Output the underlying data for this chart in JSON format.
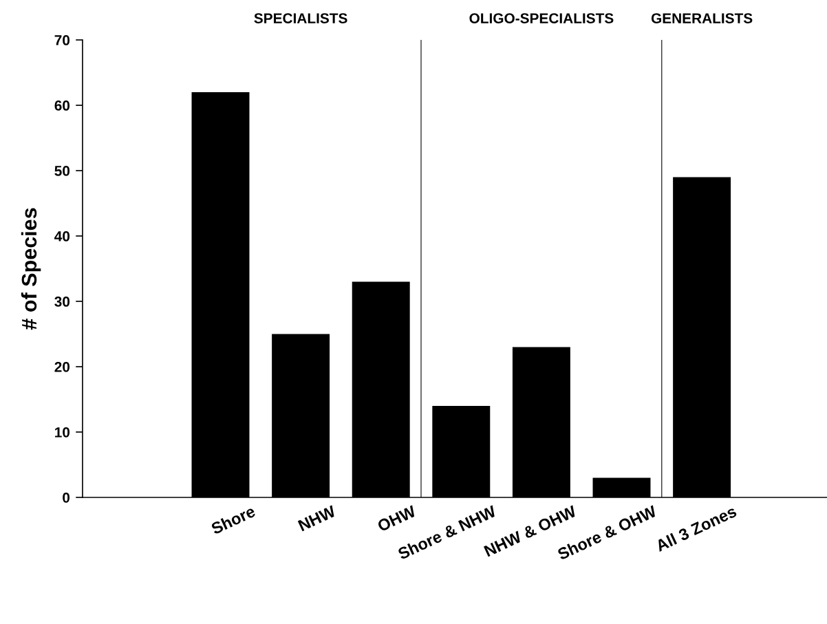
{
  "chart_data": {
    "type": "bar",
    "ylabel": "# of Species",
    "categories": [
      null,
      "Shore",
      "NHW",
      "OHW",
      "Shore & NHW",
      "NHW & OHW",
      "Shore & OHW",
      "All 3 Zones",
      null
    ],
    "values": [
      null,
      62,
      25,
      33,
      14,
      23,
      3,
      49,
      null
    ],
    "color": "#000000",
    "ylim": [
      0,
      70
    ],
    "yticks": [
      0,
      10,
      20,
      30,
      40,
      50,
      60,
      70
    ],
    "grid": false,
    "legend": false,
    "annotations": [
      "SPECIALISTS",
      "OLIGO-SPECIALISTS",
      "GENERALISTS"
    ]
  }
}
